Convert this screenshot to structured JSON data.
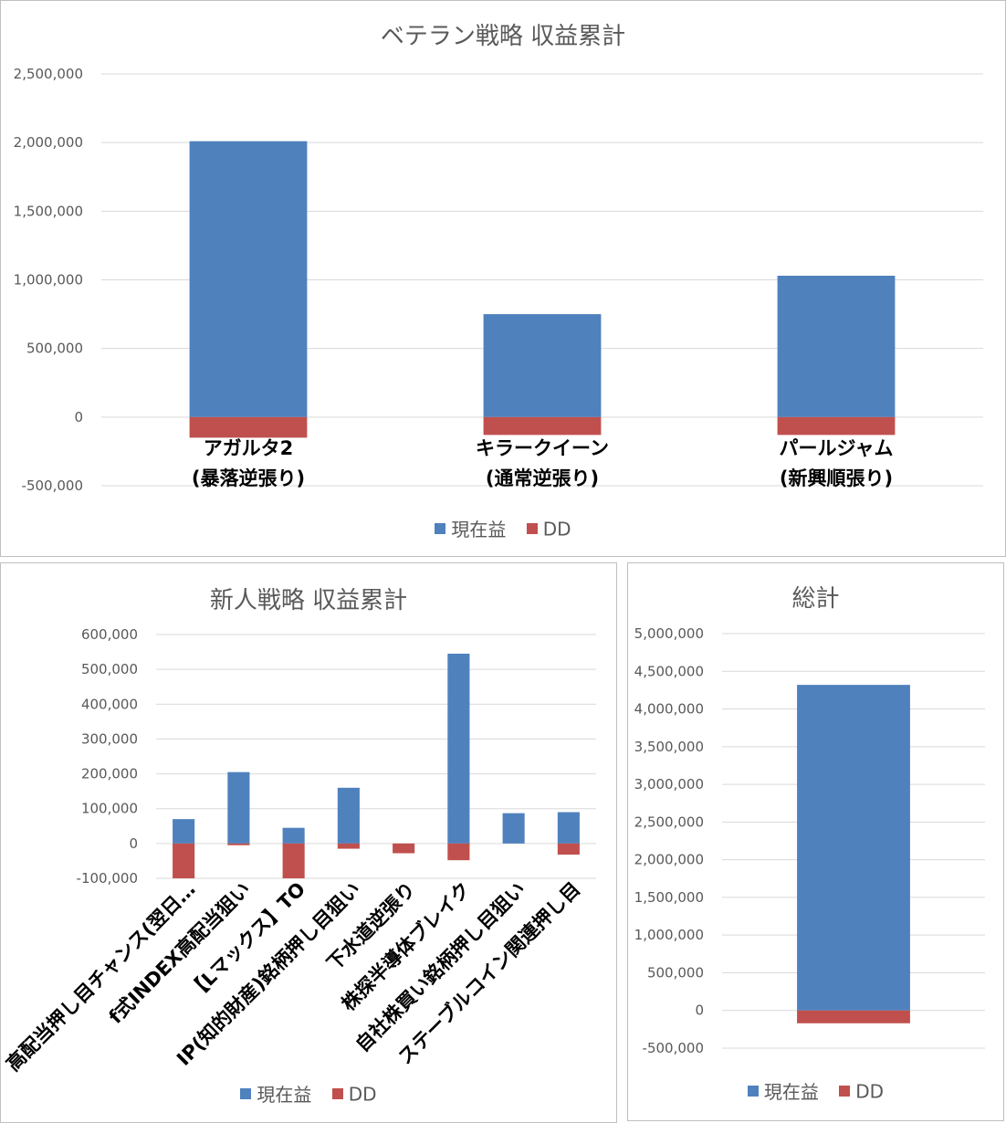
{
  "colors": {
    "profit": "#4f81bd",
    "dd": "#c0504d",
    "grid": "#d9d9d9",
    "negative_tick": "#ff0000",
    "tick": "#595959"
  },
  "legend": {
    "profit_label": "現在益",
    "dd_label": "DD"
  },
  "chart_data": [
    {
      "id": "veteran",
      "type": "bar",
      "stacked": true,
      "title": "ベテラン戦略 収益累計",
      "categories": [
        "アガルタ2\n(暴落逆張り)",
        "キラークイーン\n(通常逆張り)",
        "パールジャム\n(新興順張り)"
      ],
      "series": [
        {
          "name": "現在益",
          "values": [
            2010000,
            750000,
            1030000
          ]
        },
        {
          "name": "DD",
          "values": [
            -150000,
            -130000,
            -130000
          ]
        }
      ],
      "ylim": [
        -500000,
        2500000
      ],
      "yticks": [
        "-500,000",
        "0",
        "500,000",
        "1,000,000",
        "1,500,000",
        "2,000,000",
        "2,500,000"
      ],
      "grid": true,
      "legend_position": "bottom"
    },
    {
      "id": "newcomer",
      "type": "bar",
      "stacked": true,
      "title": "新人戦略 収益累計",
      "categories": [
        "高配当押し目チャンス(翌日…",
        "f式INDEX高配当狙い",
        "【Lマックス】TO",
        "IP(知的財産)銘柄押し目狙い",
        "下水道逆張り",
        "株探半導体ブレイク",
        "自社株買い銘柄押し目狙い",
        "ステーブルコイン関連押し目"
      ],
      "series": [
        {
          "name": "現在益",
          "values": [
            70000,
            205000,
            45000,
            160000,
            0,
            545000,
            87000,
            90000
          ]
        },
        {
          "name": "DD",
          "values": [
            -100000,
            -5000,
            -100000,
            -15000,
            -28000,
            -48000,
            0,
            -32000
          ]
        }
      ],
      "ylim": [
        -100000,
        600000
      ],
      "yticks": [
        "-100,000",
        "0",
        "100,000",
        "200,000",
        "300,000",
        "400,000",
        "500,000",
        "600,000"
      ],
      "grid": true,
      "legend_position": "bottom"
    },
    {
      "id": "total",
      "type": "bar",
      "stacked": true,
      "title": "総計",
      "categories": [
        ""
      ],
      "series": [
        {
          "name": "現在益",
          "values": [
            4320000
          ]
        },
        {
          "name": "DD",
          "values": [
            -170000
          ]
        }
      ],
      "ylim": [
        -500000,
        5000000
      ],
      "yticks": [
        "-500,000",
        "0",
        "500,000",
        "1,000,000",
        "1,500,000",
        "2,000,000",
        "2,500,000",
        "3,000,000",
        "3,500,000",
        "4,000,000",
        "4,500,000",
        "5,000,000"
      ],
      "grid": true,
      "legend_position": "bottom"
    }
  ]
}
